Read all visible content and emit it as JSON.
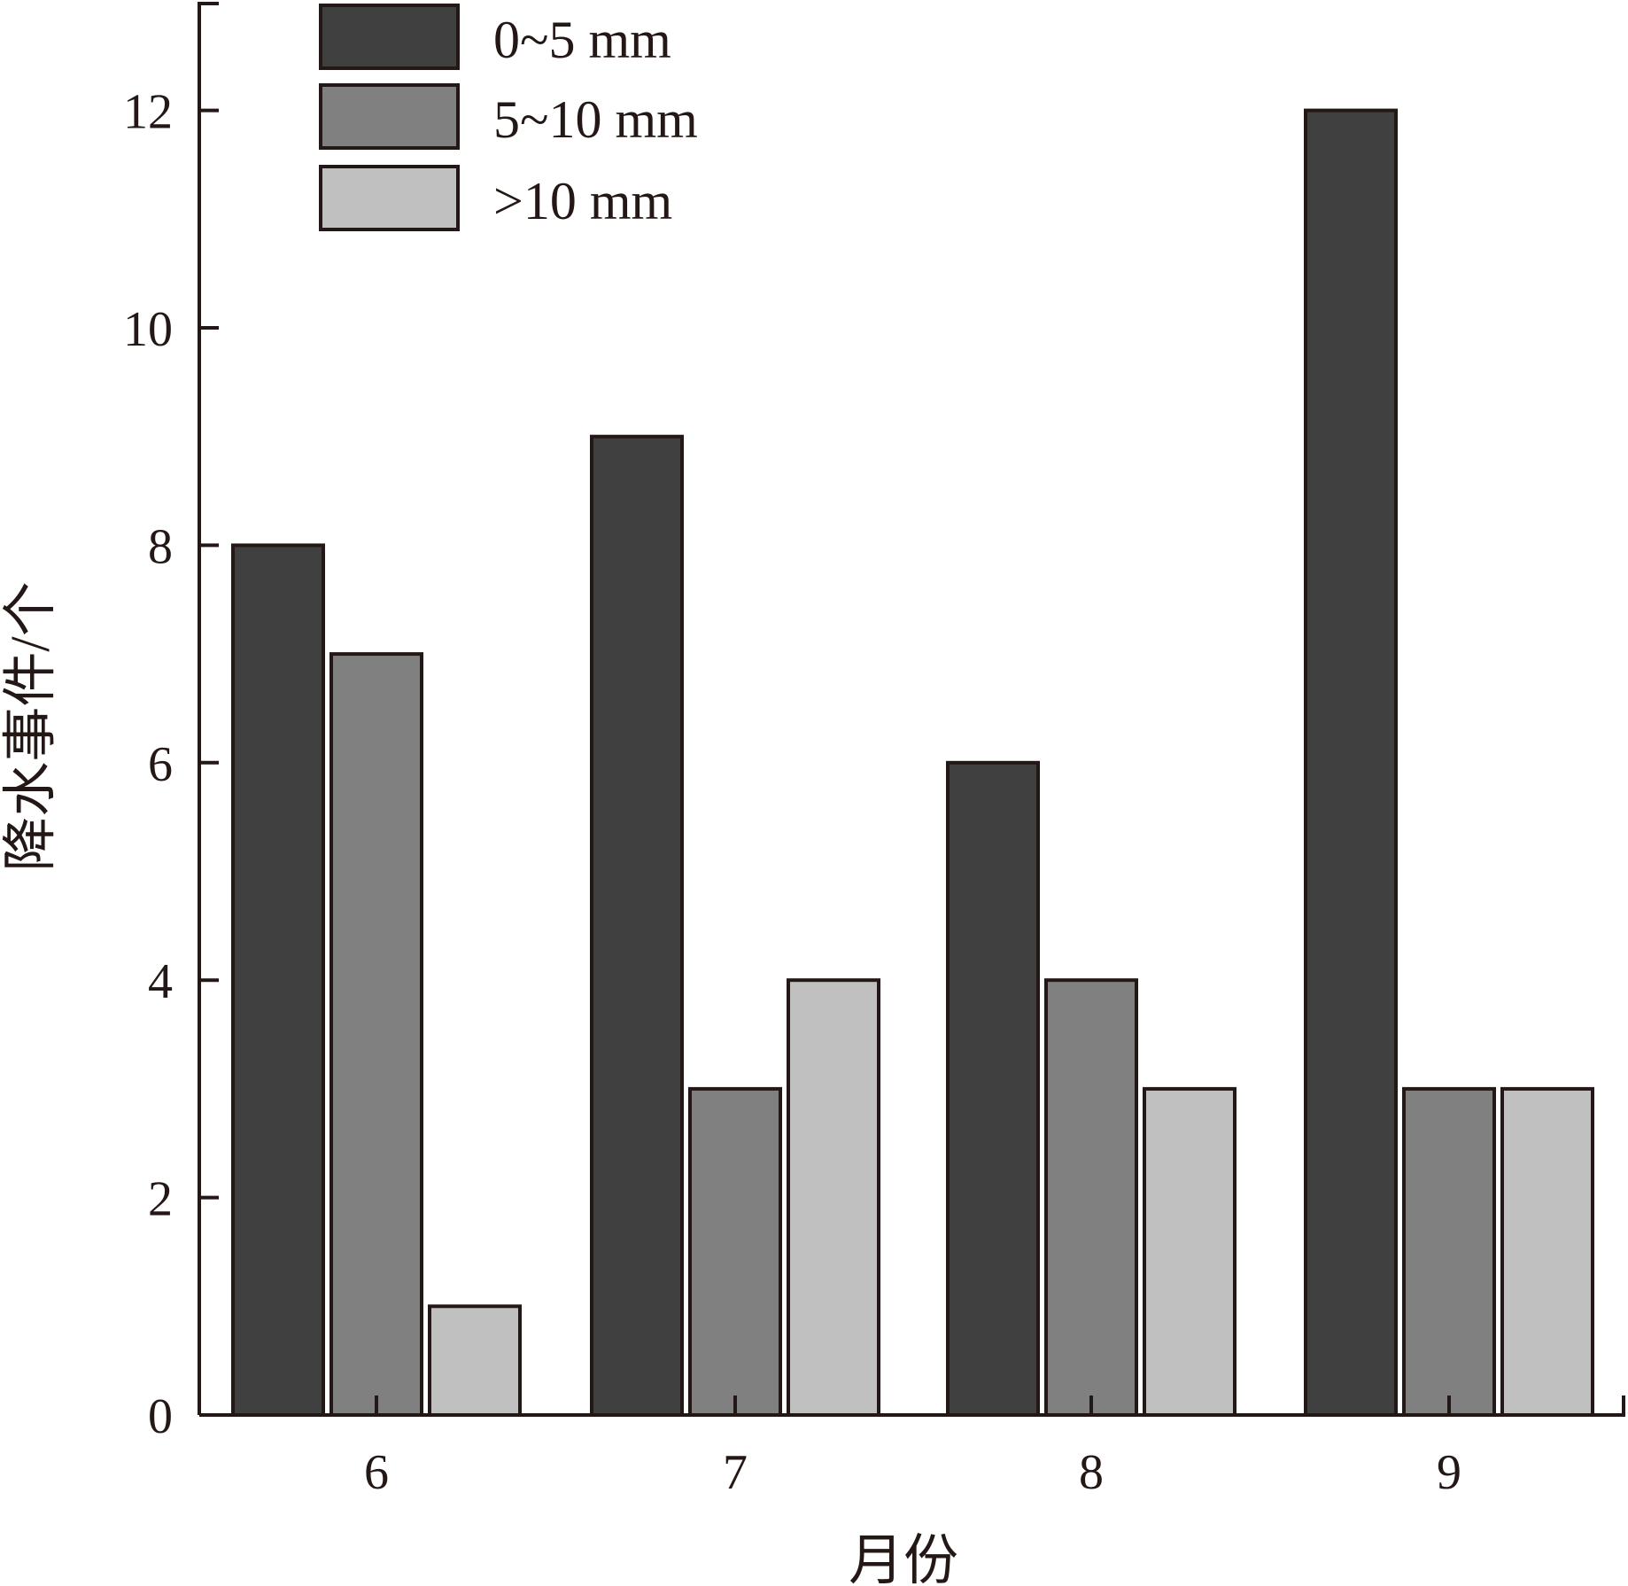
{
  "chart_data": {
    "type": "bar",
    "title": "",
    "xlabel": "月份",
    "ylabel": "降水事件/个",
    "categories": [
      "6",
      "7",
      "8",
      "9"
    ],
    "series": [
      {
        "name": "0~5 mm",
        "values": [
          8,
          9,
          6,
          12
        ],
        "color": "#404040"
      },
      {
        "name": "5~10 mm",
        "values": [
          7,
          3,
          4,
          3
        ],
        "color": "#808080"
      },
      {
        "name": ">10 mm",
        "values": [
          1,
          4,
          3,
          3
        ],
        "color": "#c0c0c0"
      }
    ],
    "ylim": [
      0,
      13
    ],
    "yticks": [
      0,
      2,
      4,
      6,
      8,
      10,
      12
    ],
    "grid": false,
    "legend_placement": "top-left"
  }
}
